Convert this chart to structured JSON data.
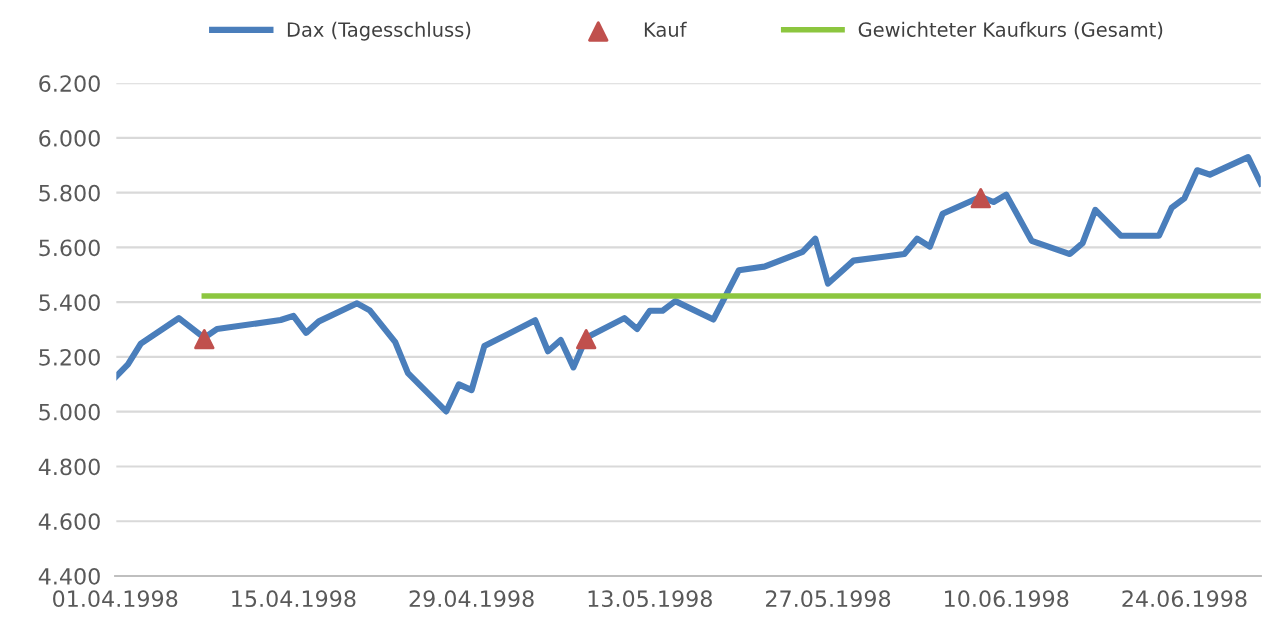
{
  "chart_data": {
    "type": "line",
    "series": [
      {
        "name": "Dax (Tagesschluss)",
        "color": "#4a7ebb",
        "marker": "none",
        "x": [
          "1998-04-01",
          "1998-04-02",
          "1998-04-03",
          "1998-04-06",
          "1998-04-08",
          "1998-04-09",
          "1998-04-14",
          "1998-04-15",
          "1998-04-16",
          "1998-04-17",
          "1998-04-20",
          "1998-04-21",
          "1998-04-23",
          "1998-04-24",
          "1998-04-27",
          "1998-04-28",
          "1998-04-29",
          "1998-04-30",
          "1998-05-04",
          "1998-05-05",
          "1998-05-06",
          "1998-05-07",
          "1998-05-08",
          "1998-05-11",
          "1998-05-12",
          "1998-05-13",
          "1998-05-14",
          "1998-05-15",
          "1998-05-18",
          "1998-05-20",
          "1998-05-22",
          "1998-05-25",
          "1998-05-26",
          "1998-05-27",
          "1998-05-29",
          "1998-06-02",
          "1998-06-03",
          "1998-06-04",
          "1998-06-05",
          "1998-06-08",
          "1998-06-09",
          "1998-06-10",
          "1998-06-12",
          "1998-06-15",
          "1998-06-16",
          "1998-06-17",
          "1998-06-19",
          "1998-06-22",
          "1998-06-23",
          "1998-06-24",
          "1998-06-25",
          "1998-06-26",
          "1998-06-29",
          "1998-06-30"
        ],
        "values": [
          5125,
          5173,
          5248,
          5342,
          5270,
          5302,
          5335,
          5350,
          5288,
          5330,
          5396,
          5370,
          5254,
          5141,
          5001,
          5100,
          5079,
          5240,
          5334,
          5221,
          5262,
          5162,
          5270,
          5342,
          5302,
          5369,
          5369,
          5404,
          5337,
          5517,
          5530,
          5584,
          5632,
          5468,
          5552,
          5576,
          5632,
          5603,
          5723,
          5785,
          5766,
          5793,
          5624,
          5576,
          5616,
          5737,
          5643,
          5643,
          5745,
          5780,
          5882,
          5866,
          5930,
          5834
        ]
      },
      {
        "name": "Kauf",
        "type": "scatter",
        "color": "#c0504d",
        "marker": "triangle",
        "x": [
          "1998-04-08",
          "1998-05-08",
          "1998-06-08"
        ],
        "values": [
          5265,
          5265,
          5780
        ]
      },
      {
        "name": "Gewichteter Kaufkurs (Gesamt)",
        "color": "#8cc63f",
        "marker": "none",
        "x": [
          "1998-04-08",
          "1998-06-30"
        ],
        "values": [
          5423,
          5423
        ]
      }
    ],
    "xlim": [
      "1998-04-01",
      "1998-06-30"
    ],
    "xticks": [
      {
        "value": "1998-04-01",
        "label": "01.04.1998"
      },
      {
        "value": "1998-04-15",
        "label": "15.04.1998"
      },
      {
        "value": "1998-04-29",
        "label": "29.04.1998"
      },
      {
        "value": "1998-05-13",
        "label": "13.05.1998"
      },
      {
        "value": "1998-05-27",
        "label": "27.05.1998"
      },
      {
        "value": "1998-06-10",
        "label": "10.06.1998"
      },
      {
        "value": "1998-06-24",
        "label": "24.06.1998"
      }
    ],
    "ylim": [
      4400,
      6200
    ],
    "yticks": [
      {
        "value": 4400,
        "label": "4.400"
      },
      {
        "value": 4600,
        "label": "4.600"
      },
      {
        "value": 4800,
        "label": "4.800"
      },
      {
        "value": 5000,
        "label": "5.000"
      },
      {
        "value": 5200,
        "label": "5.200"
      },
      {
        "value": 5400,
        "label": "5.400"
      },
      {
        "value": 5600,
        "label": "5.600"
      },
      {
        "value": 5800,
        "label": "5.800"
      },
      {
        "value": 6000,
        "label": "6.000"
      },
      {
        "value": 6200,
        "label": "6.200"
      }
    ],
    "grid": "y",
    "legend": "top",
    "line_style": "solid"
  }
}
